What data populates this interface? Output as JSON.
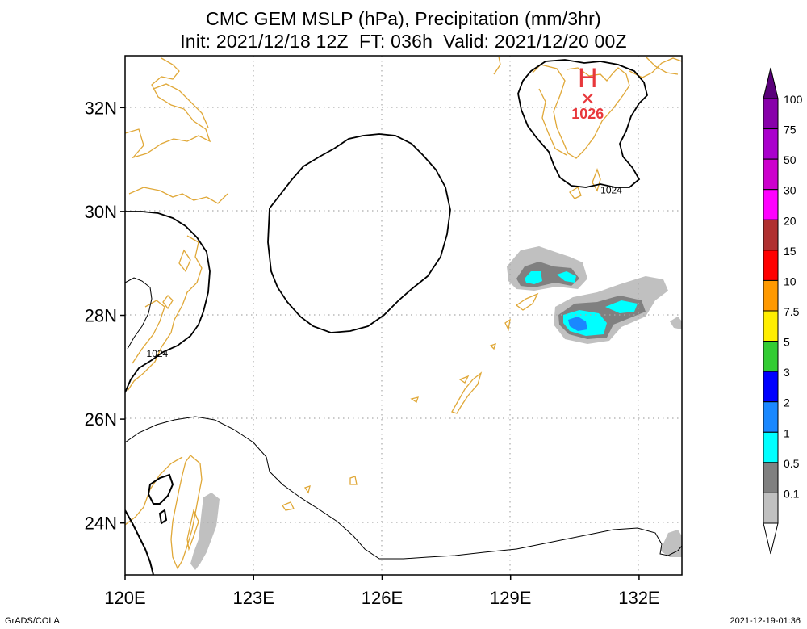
{
  "title": {
    "line1": "CMC GEM MSLP (hPa), Precipitation (mm/3hr)",
    "line2": "Init: 2021/12/18 12Z  FT: 036h  Valid: 2021/12/20 00Z"
  },
  "map": {
    "lat_ticks": [
      "32N",
      "30N",
      "28N",
      "26N",
      "24N"
    ],
    "lon_ticks": [
      "120E",
      "123E",
      "126E",
      "129E",
      "132E"
    ],
    "lat_range": [
      23.0,
      33.0
    ],
    "lon_range": [
      120.0,
      133.0
    ],
    "high_center": {
      "symbol": "H",
      "value": "1026",
      "lon": 130.8,
      "lat": 32.3
    },
    "isobar_labels": [
      {
        "text": "1024",
        "lon": 131.1,
        "lat": 30.35
      },
      {
        "text": "1024",
        "lon": 120.5,
        "lat": 27.2
      }
    ],
    "colors": {
      "coast": "#e0a838",
      "isobar": "#000000",
      "high": "#e8383c",
      "grid": "#aaaaaa"
    }
  },
  "colorbar": {
    "labels": [
      "100",
      "75",
      "50",
      "30",
      "20",
      "15",
      "10",
      "7.5",
      "5",
      "3",
      "2",
      "1",
      "0.5",
      "0.1"
    ],
    "colors": [
      "#8800aa",
      "#aa00cc",
      "#cc00cc",
      "#ff00ff",
      "#b03030",
      "#ff0000",
      "#ff9900",
      "#ffee00",
      "#33cc33",
      "#0000ff",
      "#1a88ff",
      "#00ffff",
      "#808080",
      "#c0c0c0"
    ]
  },
  "footer": {
    "left": "GrADS/COLA",
    "right": "2021-12-19-01:36"
  }
}
